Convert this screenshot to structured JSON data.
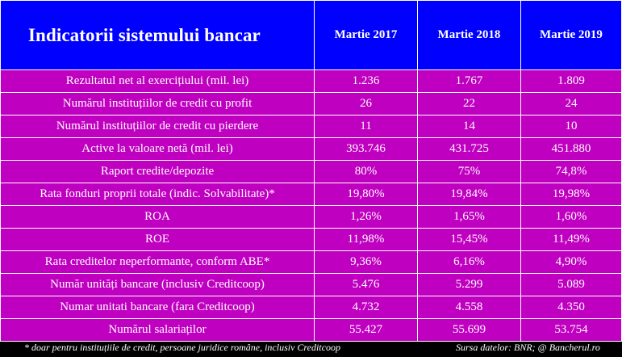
{
  "table": {
    "title": "Indicatorii sistemului bancar",
    "columns": [
      "Martie 2017",
      "Martie 2018",
      "Martie 2019"
    ],
    "rows": [
      {
        "label": "Rezultatul net al exercițiului (mil. lei)",
        "values": [
          "1.236",
          "1.767",
          "1.809"
        ]
      },
      {
        "label": "Numărul instituțiilor de credit cu profit",
        "values": [
          "26",
          "22",
          "24"
        ]
      },
      {
        "label": "Numărul instituțiilor de credit cu pierdere",
        "values": [
          "11",
          "14",
          "10"
        ]
      },
      {
        "label": "Active la valoare netă (mil. lei)",
        "values": [
          "393.746",
          "431.725",
          "451.880"
        ]
      },
      {
        "label": "Raport credite/depozite",
        "values": [
          "80%",
          "75%",
          "74,8%"
        ]
      },
      {
        "label": "Rata fonduri proprii totale (indic. Solvabilitate)*",
        "values": [
          "19,80%",
          "19,84%",
          "19,98%"
        ]
      },
      {
        "label": "ROA",
        "values": [
          "1,26%",
          "1,65%",
          "1,60%"
        ]
      },
      {
        "label": "ROE",
        "values": [
          "11,98%",
          "15,45%",
          "11,49%"
        ]
      },
      {
        "label": "Rata creditelor neperformante, conform ABE*",
        "values": [
          "9,36%",
          "6,16%",
          "4,90%"
        ]
      },
      {
        "label": "Număr unități bancare (inclusiv Creditcoop)",
        "values": [
          "5.476",
          "5.299",
          "5.089"
        ]
      },
      {
        "label": "Numar unitati bancare (fara Creditcoop)",
        "values": [
          "4.732",
          "4.558",
          "4.350"
        ]
      },
      {
        "label": "Numărul salariaților",
        "values": [
          "55.427",
          "55.699",
          "53.754"
        ]
      }
    ]
  },
  "footer": {
    "note": "* doar pentru instituțiile de credit, persoane juridice române, inclusiv Creditcoop",
    "source": "Sursa datelor: BNR; @ Bancherul.ro"
  },
  "colors": {
    "header_bg": "#0000ff",
    "row_bg": "#c000c0",
    "background": "#000000",
    "text": "#ffffff"
  }
}
